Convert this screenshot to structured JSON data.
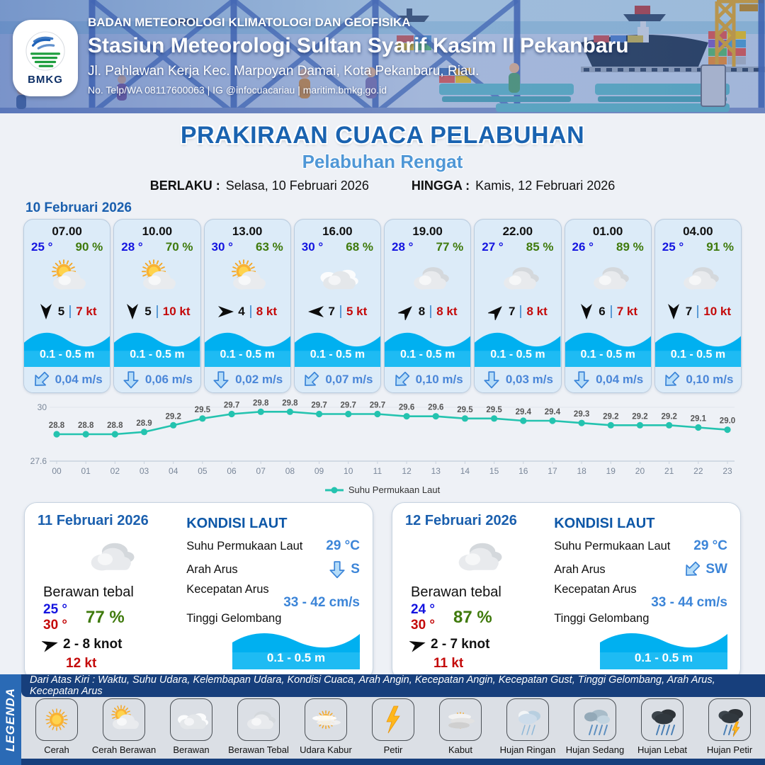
{
  "header": {
    "agency": "BADAN METEOROLOGI KLIMATOLOGI DAN GEOFISIKA",
    "station": "Stasiun Meteorologi Sultan Syarif Kasim II Pekanbaru",
    "address": "Jl. Pahlawan Kerja Kec. Marpoyan Damai, Kota Pekanbaru, Riau.",
    "contact": "No. Telp/WA 08117600063 | IG @infocuacariau | maritim.bmkg.go.id",
    "logo_text": "BMKG"
  },
  "title": {
    "main": "PRAKIRAAN CUACA PELABUHAN",
    "subtitle": "Pelabuhan Rengat",
    "berlaku_label": "BERLAKU :",
    "berlaku_value": "Selasa, 10 Februari 2026",
    "hingga_label": "HINGGA :",
    "hingga_value": "Kamis, 12 Februari 2026"
  },
  "day1": {
    "date": "10 Februari 2026",
    "cards": [
      {
        "time": "07.00",
        "temp": "25 °",
        "humidity": "90 %",
        "weather_icon": "cerah-berawan",
        "wind_dir_deg": 180,
        "wind_speed": "5",
        "gust": "7 kt",
        "wave": "0.1 - 0.5 m",
        "current_dir_deg": 225,
        "current_speed": "0,04 m/s"
      },
      {
        "time": "10.00",
        "temp": "28 °",
        "humidity": "70 %",
        "weather_icon": "cerah-berawan",
        "wind_dir_deg": 180,
        "wind_speed": "5",
        "gust": "10 kt",
        "wave": "0.1 - 0.5 m",
        "current_dir_deg": 180,
        "current_speed": "0,06 m/s"
      },
      {
        "time": "13.00",
        "temp": "30 °",
        "humidity": "63 %",
        "weather_icon": "cerah-berawan",
        "wind_dir_deg": 90,
        "wind_speed": "4",
        "gust": "8 kt",
        "wave": "0.1 - 0.5 m",
        "current_dir_deg": 180,
        "current_speed": "0,02 m/s"
      },
      {
        "time": "16.00",
        "temp": "30 °",
        "humidity": "68 %",
        "weather_icon": "berawan",
        "wind_dir_deg": 270,
        "wind_speed": "7",
        "gust": "5 kt",
        "wave": "0.1 - 0.5 m",
        "current_dir_deg": 225,
        "current_speed": "0,07 m/s"
      },
      {
        "time": "19.00",
        "temp": "28 °",
        "humidity": "77 %",
        "weather_icon": "berawan-tebal",
        "wind_dir_deg": 45,
        "wind_speed": "8",
        "gust": "8 kt",
        "wave": "0.1 - 0.5 m",
        "current_dir_deg": 225,
        "current_speed": "0,10 m/s"
      },
      {
        "time": "22.00",
        "temp": "27 °",
        "humidity": "85 %",
        "weather_icon": "berawan-tebal",
        "wind_dir_deg": 45,
        "wind_speed": "7",
        "gust": "8 kt",
        "wave": "0.1 - 0.5 m",
        "current_dir_deg": 180,
        "current_speed": "0,03 m/s"
      },
      {
        "time": "01.00",
        "temp": "26 °",
        "humidity": "89 %",
        "weather_icon": "berawan-tebal",
        "wind_dir_deg": 180,
        "wind_speed": "6",
        "gust": "7 kt",
        "wave": "0.1 - 0.5 m",
        "current_dir_deg": 180,
        "current_speed": "0,04 m/s"
      },
      {
        "time": "04.00",
        "temp": "25 °",
        "humidity": "91 %",
        "weather_icon": "berawan-tebal",
        "wind_dir_deg": 180,
        "wind_speed": "7",
        "gust": "10 kt",
        "wave": "0.1 - 0.5 m",
        "current_dir_deg": 225,
        "current_speed": "0,10 m/s"
      }
    ]
  },
  "chart_data": {
    "type": "line",
    "x": [
      "00",
      "01",
      "02",
      "03",
      "04",
      "05",
      "06",
      "07",
      "08",
      "09",
      "10",
      "11",
      "12",
      "13",
      "14",
      "15",
      "16",
      "17",
      "18",
      "19",
      "20",
      "21",
      "22",
      "23"
    ],
    "series": [
      {
        "name": "Suhu Permukaan Laut",
        "values": [
          28.8,
          28.8,
          28.8,
          28.9,
          29.2,
          29.5,
          29.7,
          29.8,
          29.8,
          29.7,
          29.7,
          29.7,
          29.6,
          29.6,
          29.5,
          29.5,
          29.4,
          29.4,
          29.3,
          29.2,
          29.2,
          29.2,
          29.1,
          29.0
        ]
      }
    ],
    "ylim": [
      27.6,
      30
    ],
    "yticks": [
      "30",
      "27.6"
    ],
    "line_color": "#24c3af",
    "legend_position": "bottom",
    "grid": true
  },
  "days": [
    {
      "date": "11 Februari 2026",
      "weather_icon": "berawan-tebal",
      "condition": "Berawan tebal",
      "temp_min": "25 °",
      "temp_max": "30 °",
      "humidity": "77 %",
      "wind_dir_deg": 75,
      "wind_range": "2  - 8 knot",
      "gust": "12 kt",
      "sea": {
        "title": "KONDISI LAUT",
        "sst_label": "Suhu Permukaan Laut",
        "sst": "29 °C",
        "current_dir_label": "Arah Arus",
        "current_dir_deg": 180,
        "current_dir": "S",
        "current_speed_label": "Kecepatan Arus",
        "current_speed": "33  - 42 cm/s",
        "wave_label": "Tinggi Gelombang",
        "wave": "0.1 - 0.5 m"
      }
    },
    {
      "date": "12 Februari 2026",
      "weather_icon": "berawan-tebal",
      "condition": "Berawan tebal",
      "temp_min": "24 °",
      "temp_max": "30 °",
      "humidity": "87 %",
      "wind_dir_deg": 75,
      "wind_range": "2  - 7 knot",
      "gust": "11 kt",
      "sea": {
        "title": "KONDISI LAUT",
        "sst_label": "Suhu Permukaan Laut",
        "sst": "29 °C",
        "current_dir_label": "Arah Arus",
        "current_dir_deg": 225,
        "current_dir": "SW",
        "current_speed_label": "Kecepatan Arus",
        "current_speed": "33  - 44 cm/s",
        "wave_label": "Tinggi Gelombang",
        "wave": "0.1 - 0.5 m"
      }
    }
  ],
  "legend": {
    "side_label": "LEGENDA",
    "description": "Dari Atas Kiri : Waktu, Suhu Udara, Kelembapan Udara, Kondisi Cuaca, Arah Angin, Kecepatan Angin, Kecepatan Gust, Tinggi Gelombang, Arah Arus, Kecepatan Arus",
    "items": [
      {
        "label": "Cerah",
        "icon": "cerah"
      },
      {
        "label": "Cerah Berawan",
        "icon": "cerah-berawan"
      },
      {
        "label": "Berawan",
        "icon": "berawan"
      },
      {
        "label": "Berawan Tebal",
        "icon": "berawan-tebal"
      },
      {
        "label": "Udara Kabur",
        "icon": "udara-kabur"
      },
      {
        "label": "Petir",
        "icon": "petir"
      },
      {
        "label": "Kabut",
        "icon": "kabut"
      },
      {
        "label": "Hujan Ringan",
        "icon": "hujan-ringan"
      },
      {
        "label": "Hujan Sedang",
        "icon": "hujan-sedang"
      },
      {
        "label": "Hujan Lebat",
        "icon": "hujan-lebat"
      },
      {
        "label": "Hujan Petir",
        "icon": "hujan-petir"
      }
    ]
  },
  "colors": {
    "accent_blue": "#1a63b0",
    "light_blue": "#4f97d6",
    "temp_blue": "#1414e0",
    "humidity_green": "#3f7a0c",
    "gust_red": "#c40a0a",
    "wave_cyan": "#00b0f0",
    "chart_teal": "#24c3af",
    "navy": "#173f7c"
  }
}
